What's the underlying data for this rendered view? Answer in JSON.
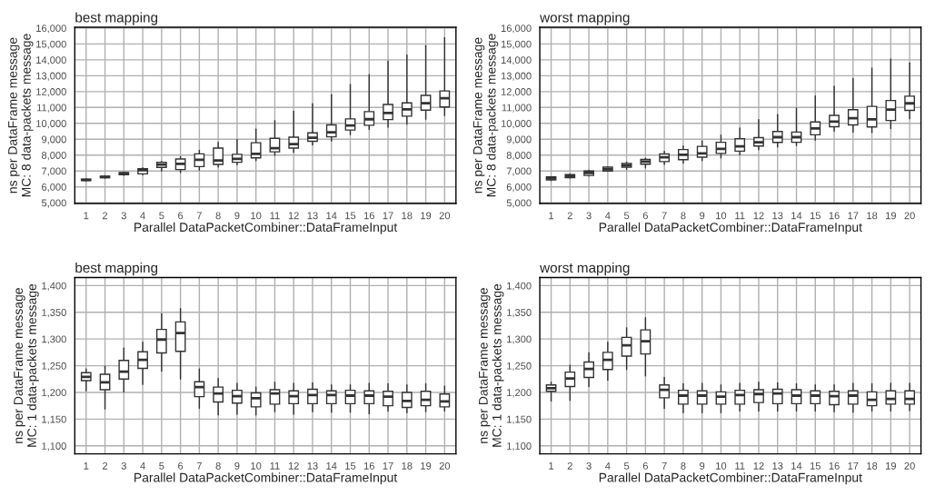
{
  "chart_data": [
    {
      "type": "box",
      "title": "best mapping",
      "xlabel": "Parallel DataPacketCombiner::DataFrameInput",
      "ylabel": "ns per DataFrame message\nMC: 8 data-packets message",
      "categories": [
        "1",
        "2",
        "3",
        "4",
        "5",
        "6",
        "7",
        "8",
        "9",
        "10",
        "11",
        "12",
        "13",
        "14",
        "15",
        "16",
        "17",
        "18",
        "19",
        "20"
      ],
      "ylim": [
        4950,
        16050
      ],
      "yticks": [
        {
          "value": 5000,
          "label": "5,000"
        },
        {
          "value": 6000,
          "label": "6,000"
        },
        {
          "value": 7000,
          "label": "7,000"
        },
        {
          "value": 8000,
          "label": "8,000"
        },
        {
          "value": 9000,
          "label": "9,000"
        },
        {
          "value": 10000,
          "label": "10,000"
        },
        {
          "value": 11000,
          "label": "11,000"
        },
        {
          "value": 12000,
          "label": "12,000"
        },
        {
          "value": 13000,
          "label": "13,000"
        },
        {
          "value": 14000,
          "label": "14,000"
        },
        {
          "value": 15000,
          "label": "15,000"
        },
        {
          "value": 16000,
          "label": "16,000"
        }
      ],
      "grid": true,
      "boxes": [
        {
          "low": 6380,
          "q1": 6410,
          "median": 6440,
          "q3": 6480,
          "high": 6500
        },
        {
          "low": 6550,
          "q1": 6580,
          "median": 6620,
          "q3": 6680,
          "high": 6700
        },
        {
          "low": 6720,
          "q1": 6760,
          "median": 6830,
          "q3": 6900,
          "high": 6930
        },
        {
          "low": 6750,
          "q1": 6820,
          "median": 7050,
          "q3": 7140,
          "high": 7200
        },
        {
          "low": 7000,
          "q1": 7230,
          "median": 7400,
          "q3": 7550,
          "high": 7600
        },
        {
          "low": 6900,
          "q1": 7090,
          "median": 7450,
          "q3": 7760,
          "high": 7900
        },
        {
          "low": 7050,
          "q1": 7280,
          "median": 7710,
          "q3": 8080,
          "high": 8300
        },
        {
          "low": 7250,
          "q1": 7410,
          "median": 7660,
          "q3": 8440,
          "high": 8800
        },
        {
          "low": 7390,
          "q1": 7550,
          "median": 7760,
          "q3": 8050,
          "high": 8980
        },
        {
          "low": 7650,
          "q1": 7830,
          "median": 8080,
          "q3": 8780,
          "high": 9630
        },
        {
          "low": 7980,
          "q1": 8210,
          "median": 8440,
          "q3": 9060,
          "high": 10170
        },
        {
          "low": 8170,
          "q1": 8440,
          "median": 8690,
          "q3": 9130,
          "high": 10760
        },
        {
          "low": 8640,
          "q1": 8870,
          "median": 9100,
          "q3": 9400,
          "high": 11240
        },
        {
          "low": 8890,
          "q1": 9150,
          "median": 9440,
          "q3": 9900,
          "high": 11810
        },
        {
          "low": 9280,
          "q1": 9580,
          "median": 9870,
          "q3": 10280,
          "high": 12450
        },
        {
          "low": 9620,
          "q1": 9880,
          "median": 10260,
          "q3": 10740,
          "high": 13070
        },
        {
          "low": 9760,
          "q1": 10240,
          "median": 10650,
          "q3": 11190,
          "high": 13930
        },
        {
          "low": 9940,
          "q1": 10450,
          "median": 10880,
          "q3": 11290,
          "high": 14300
        },
        {
          "low": 10260,
          "q1": 10830,
          "median": 11270,
          "q3": 11760,
          "high": 14890
        },
        {
          "low": 10490,
          "q1": 11030,
          "median": 11580,
          "q3": 12040,
          "high": 15390
        }
      ]
    },
    {
      "type": "box",
      "title": "worst mapping",
      "xlabel": "Parallel DataPacketCombiner::DataFrameInput",
      "ylabel": "ns per DataFrame message\nMC: 8 data-packets message",
      "categories": [
        "1",
        "2",
        "3",
        "4",
        "5",
        "6",
        "7",
        "8",
        "9",
        "10",
        "11",
        "12",
        "13",
        "14",
        "15",
        "16",
        "17",
        "18",
        "19",
        "20"
      ],
      "ylim": [
        4950,
        16050
      ],
      "yticks": [
        {
          "value": 5000,
          "label": "5,000"
        },
        {
          "value": 6000,
          "label": "6,000"
        },
        {
          "value": 7000,
          "label": "7,000"
        },
        {
          "value": 8000,
          "label": "8,000"
        },
        {
          "value": 9000,
          "label": "9,000"
        },
        {
          "value": 10000,
          "label": "10,000"
        },
        {
          "value": 11000,
          "label": "11,000"
        },
        {
          "value": 12000,
          "label": "12,000"
        },
        {
          "value": 13000,
          "label": "13,000"
        },
        {
          "value": 14000,
          "label": "14,000"
        },
        {
          "value": 15000,
          "label": "15,000"
        },
        {
          "value": 16000,
          "label": "16,000"
        }
      ],
      "grid": true,
      "boxes": [
        {
          "low": 6400,
          "q1": 6440,
          "median": 6530,
          "q3": 6630,
          "high": 6650
        },
        {
          "low": 6550,
          "q1": 6580,
          "median": 6690,
          "q3": 6770,
          "high": 6800
        },
        {
          "low": 6680,
          "q1": 6720,
          "median": 6880,
          "q3": 7000,
          "high": 7040
        },
        {
          "low": 6980,
          "q1": 7000,
          "median": 7110,
          "q3": 7240,
          "high": 7260
        },
        {
          "low": 7100,
          "q1": 7240,
          "median": 7360,
          "q3": 7480,
          "high": 7550
        },
        {
          "low": 7200,
          "q1": 7430,
          "median": 7590,
          "q3": 7730,
          "high": 7800
        },
        {
          "low": 7410,
          "q1": 7590,
          "median": 7860,
          "q3": 8070,
          "high": 8230
        },
        {
          "low": 7500,
          "q1": 7710,
          "median": 8020,
          "q3": 8350,
          "high": 8570
        },
        {
          "low": 7660,
          "q1": 7870,
          "median": 8110,
          "q3": 8550,
          "high": 8890
        },
        {
          "low": 7820,
          "q1": 8110,
          "median": 8390,
          "q3": 8810,
          "high": 9260
        },
        {
          "low": 8020,
          "q1": 8250,
          "median": 8550,
          "q3": 9030,
          "high": 9700
        },
        {
          "low": 8340,
          "q1": 8570,
          "median": 8810,
          "q3": 9100,
          "high": 10230
        },
        {
          "low": 8510,
          "q1": 8800,
          "median": 9130,
          "q3": 9490,
          "high": 10550
        },
        {
          "low": 8600,
          "q1": 8810,
          "median": 9130,
          "q3": 9450,
          "high": 10960
        },
        {
          "low": 8940,
          "q1": 9280,
          "median": 9680,
          "q3": 10090,
          "high": 11720
        },
        {
          "low": 9510,
          "q1": 9790,
          "median": 10110,
          "q3": 10500,
          "high": 12330
        },
        {
          "low": 9440,
          "q1": 9900,
          "median": 10320,
          "q3": 10860,
          "high": 12820
        },
        {
          "low": 9420,
          "q1": 9770,
          "median": 10250,
          "q3": 11070,
          "high": 13480
        },
        {
          "low": 9670,
          "q1": 10180,
          "median": 10870,
          "q3": 11440,
          "high": 14050
        },
        {
          "low": 10290,
          "q1": 10820,
          "median": 11260,
          "q3": 11710,
          "high": 13800
        }
      ]
    },
    {
      "type": "box",
      "title": "best mapping",
      "xlabel": "Parallel DataPacketCombiner::DataFrameInput",
      "ylabel": "ns per DataFrame message\nMC: 1 data-packets message",
      "categories": [
        "1",
        "2",
        "3",
        "4",
        "5",
        "6",
        "7",
        "8",
        "9",
        "10",
        "11",
        "12",
        "13",
        "14",
        "15",
        "16",
        "17",
        "18",
        "19",
        "20"
      ],
      "ylim": [
        1085,
        1415
      ],
      "yticks": [
        {
          "value": 1100,
          "label": "1,100"
        },
        {
          "value": 1150,
          "label": "1,150"
        },
        {
          "value": 1200,
          "label": "1,200"
        },
        {
          "value": 1250,
          "label": "1,250"
        },
        {
          "value": 1300,
          "label": "1,300"
        },
        {
          "value": 1350,
          "label": "1,350"
        },
        {
          "value": 1400,
          "label": "1,400"
        }
      ],
      "grid": true,
      "boxes": [
        {
          "low": 1203,
          "q1": 1222,
          "median": 1229,
          "q3": 1237,
          "high": 1244
        },
        {
          "low": 1169,
          "q1": 1205,
          "median": 1219,
          "q3": 1234,
          "high": 1249
        },
        {
          "low": 1201,
          "q1": 1225,
          "median": 1239,
          "q3": 1260,
          "high": 1283
        },
        {
          "low": 1215,
          "q1": 1245,
          "median": 1261,
          "q3": 1276,
          "high": 1294
        },
        {
          "low": 1240,
          "q1": 1274,
          "median": 1299,
          "q3": 1318,
          "high": 1347
        },
        {
          "low": 1225,
          "q1": 1277,
          "median": 1311,
          "q3": 1332,
          "high": 1357
        },
        {
          "low": 1170,
          "q1": 1192,
          "median": 1210,
          "q3": 1220,
          "high": 1244
        },
        {
          "low": 1158,
          "q1": 1182,
          "median": 1198,
          "q3": 1210,
          "high": 1226
        },
        {
          "low": 1159,
          "q1": 1180,
          "median": 1193,
          "q3": 1204,
          "high": 1217
        },
        {
          "low": 1158,
          "q1": 1173,
          "median": 1189,
          "q3": 1199,
          "high": 1210
        },
        {
          "low": 1164,
          "q1": 1178,
          "median": 1198,
          "q3": 1205,
          "high": 1219
        },
        {
          "low": 1159,
          "q1": 1179,
          "median": 1193,
          "q3": 1203,
          "high": 1217
        },
        {
          "low": 1164,
          "q1": 1179,
          "median": 1195,
          "q3": 1206,
          "high": 1218
        },
        {
          "low": 1163,
          "q1": 1179,
          "median": 1195,
          "q3": 1203,
          "high": 1214
        },
        {
          "low": 1163,
          "q1": 1179,
          "median": 1194,
          "q3": 1204,
          "high": 1214
        },
        {
          "low": 1160,
          "q1": 1179,
          "median": 1194,
          "q3": 1203,
          "high": 1217
        },
        {
          "low": 1165,
          "q1": 1175,
          "median": 1192,
          "q3": 1202,
          "high": 1216
        },
        {
          "low": 1162,
          "q1": 1172,
          "median": 1184,
          "q3": 1200,
          "high": 1214
        },
        {
          "low": 1164,
          "q1": 1175,
          "median": 1186,
          "q3": 1202,
          "high": 1216
        },
        {
          "low": 1165,
          "q1": 1173,
          "median": 1183,
          "q3": 1197,
          "high": 1212
        }
      ]
    },
    {
      "type": "box",
      "title": "worst mapping",
      "xlabel": "Parallel DataPacketCombiner::DataFrameInput",
      "ylabel": "ns per DataFrame message\nMC: 1 data-packets message",
      "categories": [
        "1",
        "2",
        "3",
        "4",
        "5",
        "6",
        "7",
        "8",
        "9",
        "10",
        "11",
        "12",
        "13",
        "14",
        "15",
        "16",
        "17",
        "18",
        "19",
        "20"
      ],
      "ylim": [
        1085,
        1415
      ],
      "yticks": [
        {
          "value": 1100,
          "label": "1,100"
        },
        {
          "value": 1150,
          "label": "1,150"
        },
        {
          "value": 1200,
          "label": "1,200"
        },
        {
          "value": 1250,
          "label": "1,250"
        },
        {
          "value": 1300,
          "label": "1,300"
        },
        {
          "value": 1350,
          "label": "1,350"
        },
        {
          "value": 1400,
          "label": "1,400"
        }
      ],
      "grid": true,
      "boxes": [
        {
          "low": 1184,
          "q1": 1202,
          "median": 1208,
          "q3": 1214,
          "high": 1219
        },
        {
          "low": 1185,
          "q1": 1211,
          "median": 1226,
          "q3": 1238,
          "high": 1251
        },
        {
          "low": 1211,
          "q1": 1228,
          "median": 1244,
          "q3": 1257,
          "high": 1274
        },
        {
          "low": 1223,
          "q1": 1243,
          "median": 1261,
          "q3": 1275,
          "high": 1294
        },
        {
          "low": 1243,
          "q1": 1268,
          "median": 1288,
          "q3": 1303,
          "high": 1321
        },
        {
          "low": 1231,
          "q1": 1272,
          "median": 1296,
          "q3": 1317,
          "high": 1340
        },
        {
          "low": 1170,
          "q1": 1190,
          "median": 1205,
          "q3": 1214,
          "high": 1228
        },
        {
          "low": 1162,
          "q1": 1178,
          "median": 1194,
          "q3": 1204,
          "high": 1216
        },
        {
          "low": 1162,
          "q1": 1178,
          "median": 1194,
          "q3": 1203,
          "high": 1217
        },
        {
          "low": 1162,
          "q1": 1178,
          "median": 1192,
          "q3": 1201,
          "high": 1214
        },
        {
          "low": 1165,
          "q1": 1178,
          "median": 1195,
          "q3": 1204,
          "high": 1217
        },
        {
          "low": 1165,
          "q1": 1181,
          "median": 1197,
          "q3": 1205,
          "high": 1219
        },
        {
          "low": 1165,
          "q1": 1179,
          "median": 1198,
          "q3": 1206,
          "high": 1218
        },
        {
          "low": 1165,
          "q1": 1179,
          "median": 1194,
          "q3": 1205,
          "high": 1216
        },
        {
          "low": 1165,
          "q1": 1179,
          "median": 1194,
          "q3": 1203,
          "high": 1214
        },
        {
          "low": 1164,
          "q1": 1177,
          "median": 1193,
          "q3": 1202,
          "high": 1214
        },
        {
          "low": 1163,
          "q1": 1178,
          "median": 1194,
          "q3": 1203,
          "high": 1217
        },
        {
          "low": 1165,
          "q1": 1175,
          "median": 1186,
          "q3": 1201,
          "high": 1216
        },
        {
          "low": 1165,
          "q1": 1178,
          "median": 1188,
          "q3": 1203,
          "high": 1217
        },
        {
          "low": 1166,
          "q1": 1178,
          "median": 1188,
          "q3": 1203,
          "high": 1217
        }
      ]
    }
  ]
}
